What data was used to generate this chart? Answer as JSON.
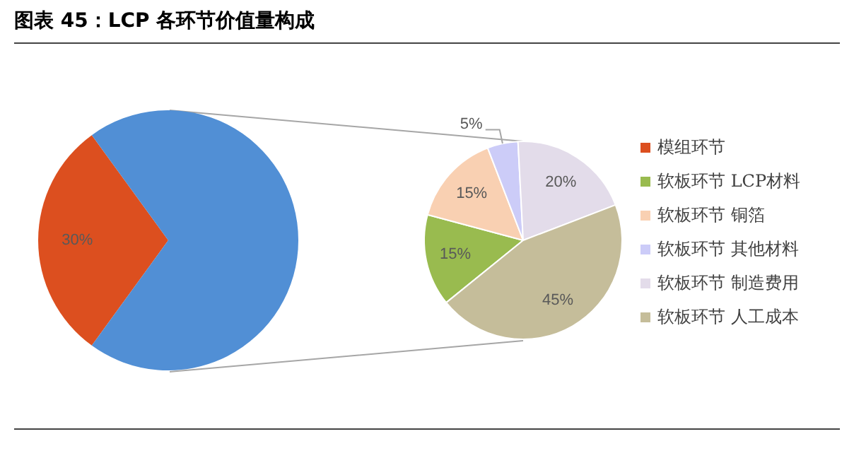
{
  "chart_data": [
    {
      "type": "pie",
      "title": "图表 45：LCP 各环节价值量构成",
      "categories": [
        "模组环节",
        null
      ],
      "values": [
        30,
        70
      ],
      "colors": [
        "#dc4f1f",
        "#518fd5"
      ],
      "value_labels": [
        "30%",
        null
      ],
      "legend": "right"
    },
    {
      "type": "pie",
      "categories": [
        "软板环节 LCP材料",
        "软板环节 铜箔",
        "软板环节 其他材料",
        "软板环节 制造费用",
        "软板环节 人工成本"
      ],
      "values": [
        15,
        15,
        5,
        20,
        45
      ],
      "colors": [
        "#99bb4f",
        "#f9d0b2",
        "#ccccf8",
        "#e3dcea",
        "#c5bd9a"
      ],
      "value_labels": [
        "15%",
        "15%",
        "5%",
        "20%",
        "45%"
      ],
      "legend": "right"
    }
  ]
}
